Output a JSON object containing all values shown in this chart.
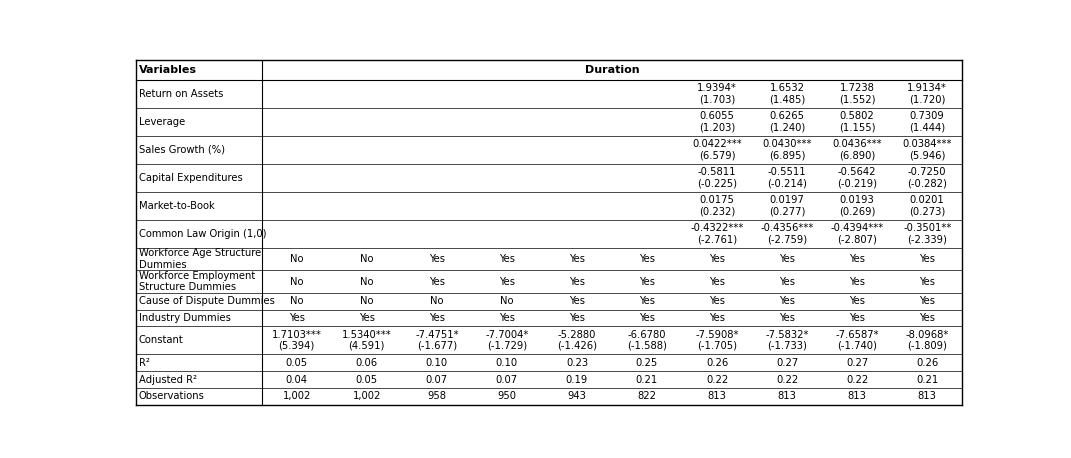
{
  "title": "Duration",
  "rows": [
    {
      "label": "Return on Assets",
      "values": [
        "",
        "",
        "",
        "",
        "",
        "",
        "1.9394*",
        "1.6532",
        "1.7238",
        "1.9134*"
      ],
      "tstat": [
        "",
        "",
        "",
        "",
        "",
        "",
        "(1.703)",
        "(1.485)",
        "(1.552)",
        "(1.720)"
      ],
      "has_tstat": true,
      "two_line_label": false
    },
    {
      "label": "Leverage",
      "values": [
        "",
        "",
        "",
        "",
        "",
        "",
        "0.6055",
        "0.6265",
        "0.5802",
        "0.7309"
      ],
      "tstat": [
        "",
        "",
        "",
        "",
        "",
        "",
        "(1.203)",
        "(1.240)",
        "(1.155)",
        "(1.444)"
      ],
      "has_tstat": true,
      "two_line_label": false
    },
    {
      "label": "Sales Growth (%)",
      "values": [
        "",
        "",
        "",
        "",
        "",
        "",
        "0.0422***",
        "0.0430***",
        "0.0436***",
        "0.0384***"
      ],
      "tstat": [
        "",
        "",
        "",
        "",
        "",
        "",
        "(6.579)",
        "(6.895)",
        "(6.890)",
        "(5.946)"
      ],
      "has_tstat": true,
      "two_line_label": false
    },
    {
      "label": "Capital Expenditures",
      "values": [
        "",
        "",
        "",
        "",
        "",
        "",
        "-0.5811",
        "-0.5511",
        "-0.5642",
        "-0.7250"
      ],
      "tstat": [
        "",
        "",
        "",
        "",
        "",
        "",
        "(-0.225)",
        "(-0.214)",
        "(-0.219)",
        "(-0.282)"
      ],
      "has_tstat": true,
      "two_line_label": false
    },
    {
      "label": "Market-to-Book",
      "values": [
        "",
        "",
        "",
        "",
        "",
        "",
        "0.0175",
        "0.0197",
        "0.0193",
        "0.0201"
      ],
      "tstat": [
        "",
        "",
        "",
        "",
        "",
        "",
        "(0.232)",
        "(0.277)",
        "(0.269)",
        "(0.273)"
      ],
      "has_tstat": true,
      "two_line_label": false
    },
    {
      "label": "Common Law Origin (1,0)",
      "values": [
        "",
        "",
        "",
        "",
        "",
        "",
        "-0.4322***",
        "-0.4356***",
        "-0.4394***",
        "-0.3501**"
      ],
      "tstat": [
        "",
        "",
        "",
        "",
        "",
        "",
        "(-2.761)",
        "(-2.759)",
        "(-2.807)",
        "(-2.339)"
      ],
      "has_tstat": true,
      "two_line_label": false
    },
    {
      "label": "Workforce Age Structure\nDummies",
      "values": [
        "No",
        "No",
        "Yes",
        "Yes",
        "Yes",
        "Yes",
        "Yes",
        "Yes",
        "Yes",
        "Yes"
      ],
      "tstat": [
        "",
        "",
        "",
        "",
        "",
        "",
        "",
        "",
        "",
        ""
      ],
      "has_tstat": false,
      "two_line_label": true
    },
    {
      "label": "Workforce Employment\nStructure Dummies",
      "values": [
        "No",
        "No",
        "Yes",
        "Yes",
        "Yes",
        "Yes",
        "Yes",
        "Yes",
        "Yes",
        "Yes"
      ],
      "tstat": [
        "",
        "",
        "",
        "",
        "",
        "",
        "",
        "",
        "",
        ""
      ],
      "has_tstat": false,
      "two_line_label": true
    },
    {
      "label": "Cause of Dispute Dummies",
      "values": [
        "No",
        "No",
        "No",
        "No",
        "Yes",
        "Yes",
        "Yes",
        "Yes",
        "Yes",
        "Yes"
      ],
      "tstat": [
        "",
        "",
        "",
        "",
        "",
        "",
        "",
        "",
        "",
        ""
      ],
      "has_tstat": false,
      "two_line_label": false
    },
    {
      "label": "Industry Dummies",
      "values": [
        "Yes",
        "Yes",
        "Yes",
        "Yes",
        "Yes",
        "Yes",
        "Yes",
        "Yes",
        "Yes",
        "Yes"
      ],
      "tstat": [
        "",
        "",
        "",
        "",
        "",
        "",
        "",
        "",
        "",
        ""
      ],
      "has_tstat": false,
      "two_line_label": false
    },
    {
      "label": "Constant",
      "values": [
        "1.7103***",
        "1.5340***",
        "-7.4751*",
        "-7.7004*",
        "-5.2880",
        "-6.6780",
        "-7.5908*",
        "-7.5832*",
        "-7.6587*",
        "-8.0968*"
      ],
      "tstat": [
        "(5.394)",
        "(4.591)",
        "(-1.677)",
        "(-1.729)",
        "(-1.426)",
        "(-1.588)",
        "(-1.705)",
        "(-1.733)",
        "(-1.740)",
        "(-1.809)"
      ],
      "has_tstat": true,
      "two_line_label": false
    },
    {
      "label": "R²",
      "values": [
        "0.05",
        "0.06",
        "0.10",
        "0.10",
        "0.23",
        "0.25",
        "0.26",
        "0.27",
        "0.27",
        "0.26"
      ],
      "tstat": [
        "",
        "",
        "",
        "",
        "",
        "",
        "",
        "",
        "",
        ""
      ],
      "has_tstat": false,
      "two_line_label": false
    },
    {
      "label": "Adjusted R²",
      "values": [
        "0.04",
        "0.05",
        "0.07",
        "0.07",
        "0.19",
        "0.21",
        "0.22",
        "0.22",
        "0.22",
        "0.21"
      ],
      "tstat": [
        "",
        "",
        "",
        "",
        "",
        "",
        "",
        "",
        "",
        ""
      ],
      "has_tstat": false,
      "two_line_label": false
    },
    {
      "label": "Observations",
      "values": [
        "1,002",
        "1,002",
        "958",
        "950",
        "943",
        "822",
        "813",
        "813",
        "813",
        "813"
      ],
      "tstat": [
        "",
        "",
        "",
        "",
        "",
        "",
        "",
        "",
        "",
        ""
      ],
      "has_tstat": false,
      "two_line_label": false
    }
  ],
  "bg_color": "#ffffff",
  "text_color": "#000000",
  "header_color": "#000000",
  "line_color": "#000000",
  "fontsize": 7.2,
  "header_fontsize": 8.0
}
